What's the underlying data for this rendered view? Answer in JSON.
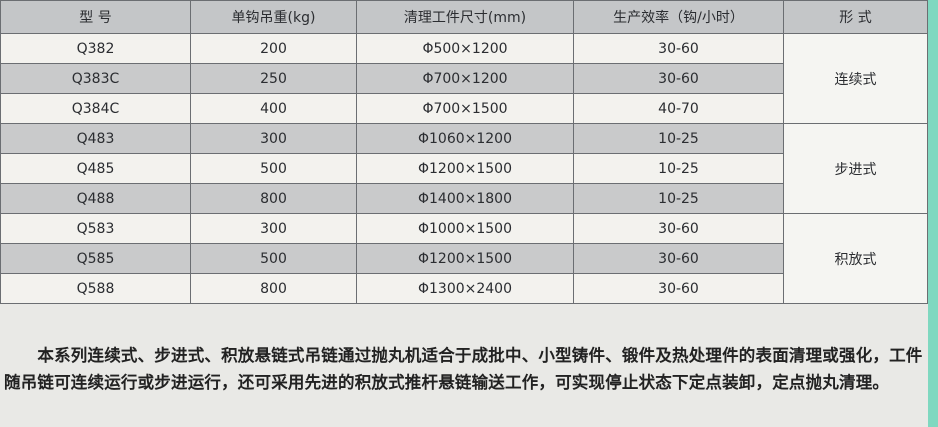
{
  "table": {
    "headers": [
      "型 号",
      "单钩吊重(kg)",
      "清理工件尺寸(mm)",
      "生产效率（钩/小时）",
      "形 式"
    ],
    "rows": [
      {
        "model": "Q382",
        "load": "200",
        "size": "Φ500×1200",
        "rate": "30-60"
      },
      {
        "model": "Q383C",
        "load": "250",
        "size": "Φ700×1200",
        "rate": "30-60"
      },
      {
        "model": "Q384C",
        "load": "400",
        "size": "Φ700×1500",
        "rate": "40-70"
      },
      {
        "model": "Q483",
        "load": "300",
        "size": "Φ1060×1200",
        "rate": "10-25"
      },
      {
        "model": "Q485",
        "load": "500",
        "size": "Φ1200×1500",
        "rate": "10-25"
      },
      {
        "model": "Q488",
        "load": "800",
        "size": "Φ1400×1800",
        "rate": "10-25"
      },
      {
        "model": "Q583",
        "load": "300",
        "size": "Φ1000×1500",
        "rate": "30-60"
      },
      {
        "model": "Q585",
        "load": "500",
        "size": "Φ1200×1500",
        "rate": "30-60"
      },
      {
        "model": "Q588",
        "load": "800",
        "size": "Φ1300×2400",
        "rate": "30-60"
      }
    ],
    "types": [
      "连续式",
      "步进式",
      "积放式"
    ]
  },
  "paragraph": "　　本系列连续式、步进式、积放悬链式吊链通过抛丸机适合于成批中、小型铸件、锻件及热处理件的表面清理或强化，工件随吊链可连续运行或步进运行，还可采用先进的积放式推杆悬链输送工作，可实现停止状态下定点装卸，定点抛丸清理。"
}
